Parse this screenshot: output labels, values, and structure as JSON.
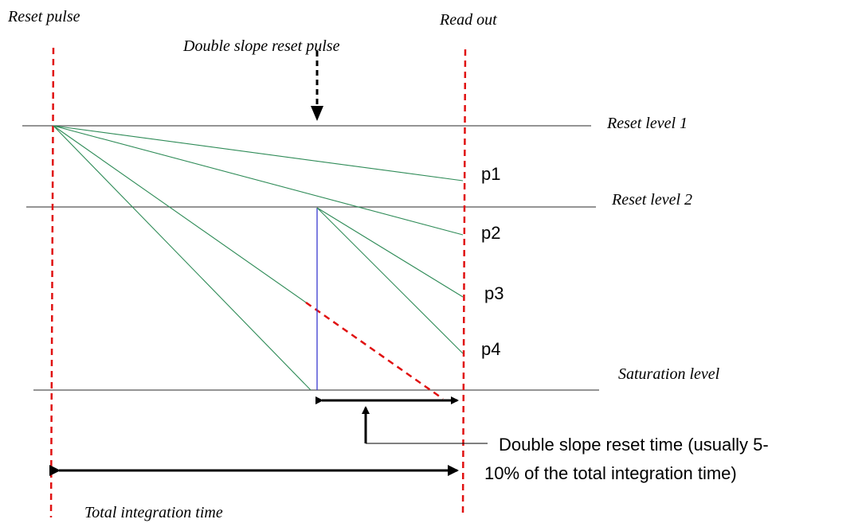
{
  "labels": {
    "reset_pulse": "Reset pulse",
    "read_out": "Read out",
    "double_slope_reset_pulse": "Double slope reset pulse",
    "reset_level_1": "Reset level 1",
    "reset_level_2": "Reset level 2",
    "saturation_level": "Saturation level",
    "total_integration_time": "Total integration time",
    "double_slope_note_line1": "Double slope reset time (usually 5-",
    "double_slope_note_line2": "10% of the total integration time)"
  },
  "points": {
    "p1": "p1",
    "p2": "p2",
    "p3": "p3",
    "p4": "p4"
  },
  "colors": {
    "pulse_markers": "#e01010",
    "signal_lines": "#2e8b57",
    "reset_jump": "#3a3ad0",
    "level_lines": "#555555"
  }
}
